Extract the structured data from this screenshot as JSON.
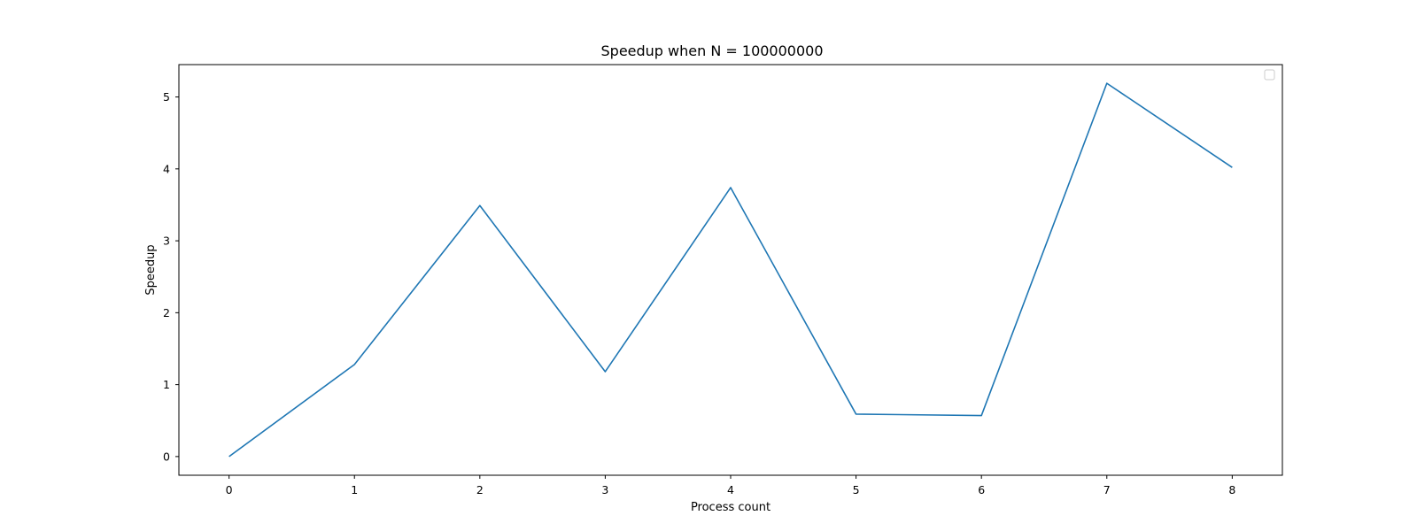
{
  "chart_data": {
    "type": "line",
    "title": "Speedup when N = 100000000",
    "xlabel": "Process count",
    "ylabel": "Speedup",
    "x": [
      0,
      1,
      2,
      3,
      4,
      5,
      6,
      7,
      8
    ],
    "xticks": [
      0,
      1,
      2,
      3,
      4,
      5,
      6,
      7,
      8
    ],
    "yticks": [
      0,
      1,
      2,
      3,
      4,
      5
    ],
    "xlim": [
      -0.4,
      8.4
    ],
    "ylim": [
      -0.26,
      5.45
    ],
    "grid": false,
    "legend": {
      "placement": "top-right",
      "entries": []
    },
    "series": [
      {
        "color": "#1f77b4",
        "values": [
          0.0,
          1.28,
          3.49,
          1.18,
          3.74,
          0.59,
          0.57,
          5.19,
          4.02
        ]
      }
    ]
  }
}
